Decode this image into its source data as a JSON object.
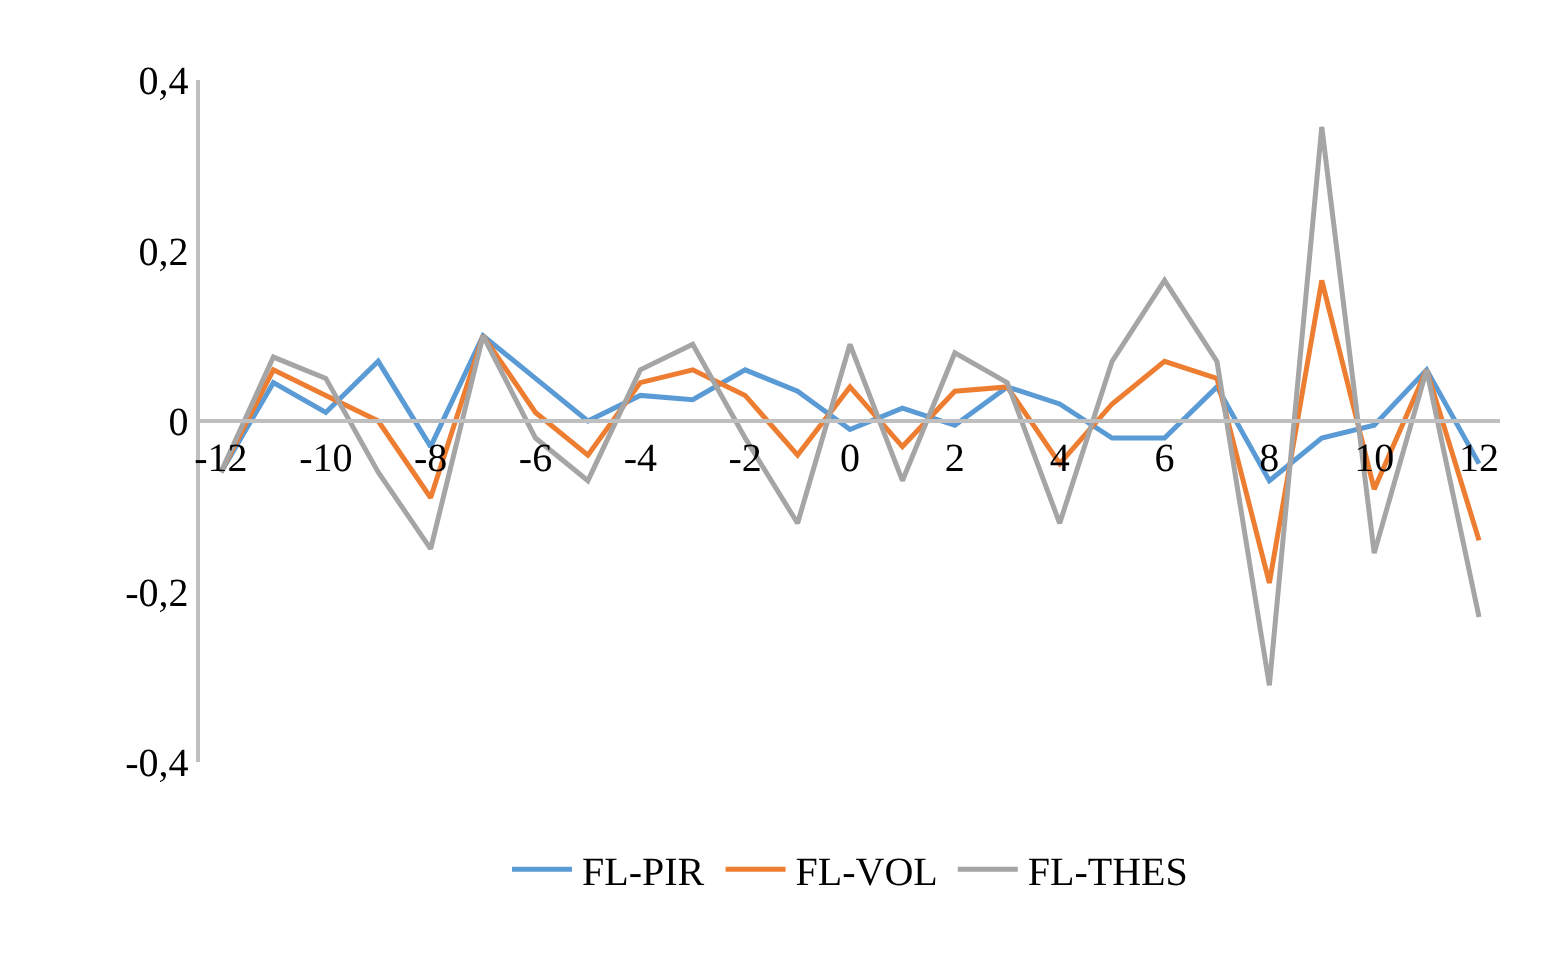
{
  "chart_data": {
    "type": "line",
    "x": [
      -12,
      -11,
      -10,
      -9,
      -8,
      -7,
      -6,
      -5,
      -4,
      -3,
      -2,
      -1,
      0,
      1,
      2,
      3,
      4,
      5,
      6,
      7,
      8,
      9,
      10,
      11,
      12
    ],
    "series": [
      {
        "name": "FL-PIR",
        "color": "#5b9bd5",
        "values": [
          -0.06,
          0.045,
          0.01,
          0.07,
          -0.03,
          0.1,
          0.05,
          0.0,
          0.03,
          0.025,
          0.06,
          0.035,
          -0.01,
          0.015,
          -0.005,
          0.04,
          0.02,
          -0.02,
          -0.02,
          0.04,
          -0.07,
          -0.02,
          -0.005,
          0.06,
          -0.05
        ]
      },
      {
        "name": "FL-VOL",
        "color": "#ed7d31",
        "values": [
          -0.06,
          0.06,
          0.03,
          0.0,
          -0.09,
          0.1,
          0.01,
          -0.04,
          0.045,
          0.06,
          0.03,
          -0.04,
          0.04,
          -0.03,
          0.035,
          0.04,
          -0.05,
          0.02,
          0.07,
          0.05,
          -0.19,
          0.165,
          -0.08,
          0.06,
          -0.14
        ]
      },
      {
        "name": "FL-THES",
        "color": "#a5a5a5",
        "values": [
          -0.06,
          0.075,
          0.05,
          -0.06,
          -0.15,
          0.1,
          -0.02,
          -0.07,
          0.06,
          0.09,
          -0.02,
          -0.12,
          0.09,
          -0.07,
          0.08,
          0.045,
          -0.12,
          0.07,
          0.165,
          0.07,
          -0.31,
          0.345,
          -0.155,
          0.06,
          -0.23
        ]
      }
    ],
    "xlim": [
      -12.4,
      12.4
    ],
    "xticks": [
      -12,
      -10,
      -8,
      -6,
      -4,
      -2,
      0,
      2,
      4,
      6,
      8,
      10,
      12
    ],
    "ylim": [
      -0.4,
      0.4
    ],
    "yticks": [
      {
        "value": -0.4,
        "label": "-0,4"
      },
      {
        "value": -0.2,
        "label": "-0,2"
      },
      {
        "value": 0,
        "label": "0"
      },
      {
        "value": 0.2,
        "label": "0,2"
      },
      {
        "value": 0.4,
        "label": "0,4"
      }
    ],
    "legend": "bottom",
    "marker": "none",
    "line_style": "solid"
  }
}
